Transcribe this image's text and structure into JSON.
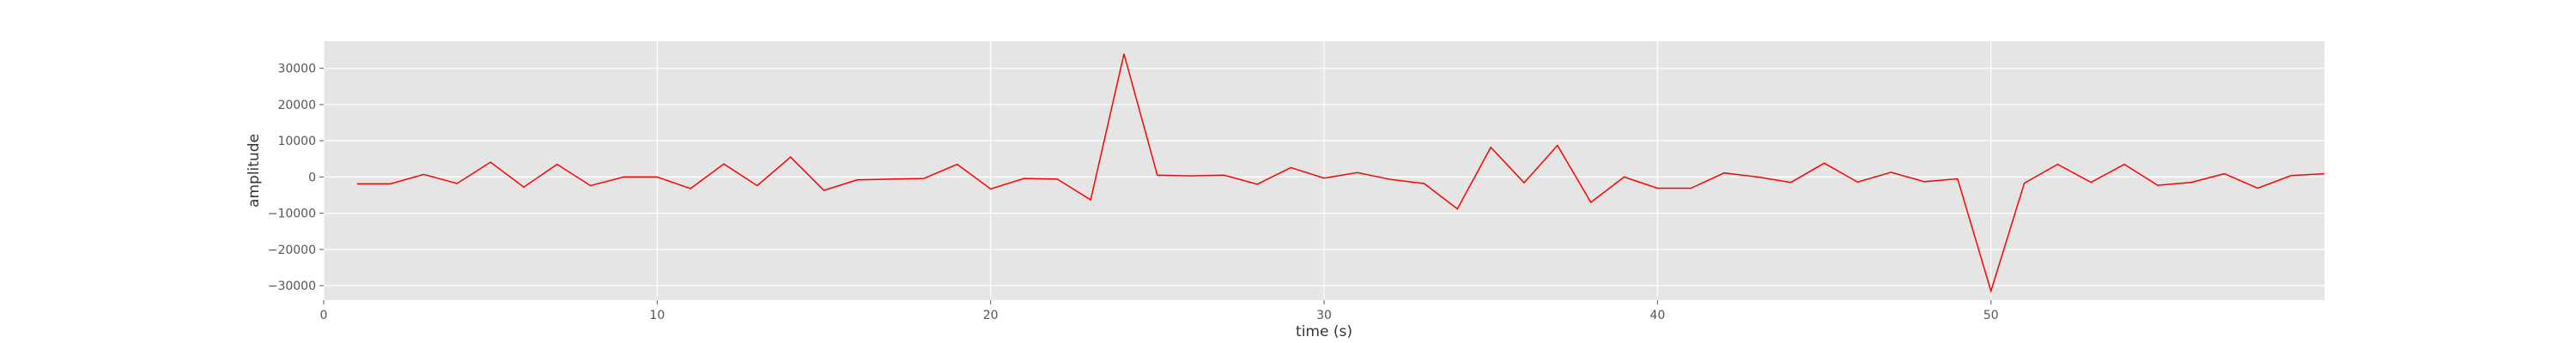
{
  "chart_data": {
    "type": "line",
    "title": "",
    "xlabel": "time (s)",
    "ylabel": "amplitude",
    "xlim": [
      0,
      60
    ],
    "ylim": [
      -34000,
      37500
    ],
    "x_ticks": [
      0,
      10,
      20,
      30,
      40,
      50
    ],
    "y_ticks": [
      -30000,
      -20000,
      -10000,
      0,
      10000,
      20000,
      30000
    ],
    "x_tick_labels": [
      "0",
      "10",
      "20",
      "30",
      "40",
      "50"
    ],
    "y_tick_labels": [
      "−30000",
      "−20000",
      "−10000",
      "0",
      "10000",
      "20000",
      "30000"
    ],
    "grid": true,
    "style": {
      "background": "#e5e5e5",
      "grid_color": "#ffffff",
      "line_color": "#ff0000"
    },
    "series": [
      {
        "x": [
          1,
          2,
          3,
          4,
          5,
          6,
          7,
          8,
          9,
          10,
          11,
          12,
          13,
          14,
          15,
          16,
          17,
          18,
          19,
          20,
          21,
          22,
          23,
          24,
          25,
          26,
          27,
          28,
          29,
          30,
          31,
          32,
          33,
          34,
          35,
          36,
          37,
          38,
          39,
          40,
          41,
          42,
          43,
          44,
          45,
          46,
          47,
          48,
          49,
          50,
          51,
          52,
          53,
          54,
          55,
          56,
          57,
          58,
          59,
          60
        ],
        "values": [
          -1900,
          -1900,
          700,
          -1800,
          4100,
          -2800,
          3500,
          -2400,
          0,
          0,
          -3200,
          3600,
          -2400,
          5500,
          -3700,
          -800,
          -600,
          -400,
          3500,
          -3300,
          -400,
          -600,
          -6300,
          34000,
          500,
          300,
          500,
          -2000,
          2600,
          -300,
          1200,
          -700,
          -1800,
          -8800,
          8200,
          -1600,
          8700,
          -7000,
          0,
          -3100,
          -3100,
          1100,
          0,
          -1500,
          3800,
          -1400,
          1300,
          -1300,
          -500,
          -31500,
          -1700,
          3500,
          -1500,
          3500,
          -2300,
          -1500,
          900,
          -3100,
          400,
          900
        ]
      }
    ]
  }
}
